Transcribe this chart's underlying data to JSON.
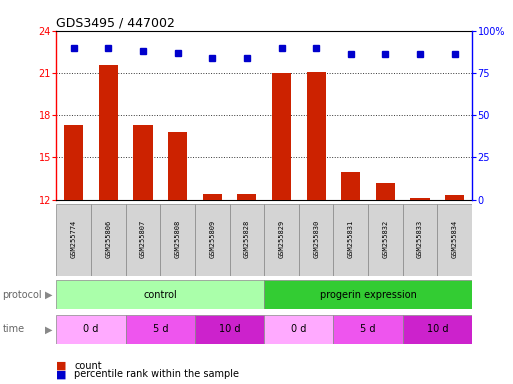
{
  "title": "GDS3495 / 447002",
  "samples": [
    "GSM255774",
    "GSM255806",
    "GSM255807",
    "GSM255808",
    "GSM255809",
    "GSM255828",
    "GSM255829",
    "GSM255830",
    "GSM255831",
    "GSM255832",
    "GSM255833",
    "GSM255834"
  ],
  "bar_values": [
    17.3,
    21.6,
    17.3,
    16.8,
    12.4,
    12.4,
    21.0,
    21.1,
    14.0,
    13.2,
    12.1,
    12.3
  ],
  "dot_values": [
    90,
    90,
    88,
    87,
    84,
    84,
    90,
    90,
    86,
    86,
    86,
    86
  ],
  "ylim_left": [
    12,
    24
  ],
  "ylim_right": [
    0,
    100
  ],
  "yticks_left": [
    12,
    15,
    18,
    21,
    24
  ],
  "yticks_right": [
    0,
    25,
    50,
    75,
    100
  ],
  "bar_color": "#cc2200",
  "dot_color": "#0000cc",
  "bar_width": 0.55,
  "protocol_control_label": "control",
  "protocol_progerin_label": "progerin expression",
  "time_labels": [
    "0 d",
    "5 d",
    "10 d",
    "0 d",
    "5 d",
    "10 d"
  ],
  "protocol_light_color": "#aaffaa",
  "protocol_dark_color": "#33cc33",
  "legend_count_label": "count",
  "legend_pct_label": "percentile rank within the sample",
  "time_0d_color": "#ffaaff",
  "time_5d_color": "#ee55ee",
  "time_10d_color": "#cc22cc",
  "sample_bg_color": "#d4d4d4",
  "grid_color": "#333333",
  "title_fontsize": 9,
  "axis_fontsize": 7,
  "sample_fontsize": 5,
  "legend_fontsize": 7
}
